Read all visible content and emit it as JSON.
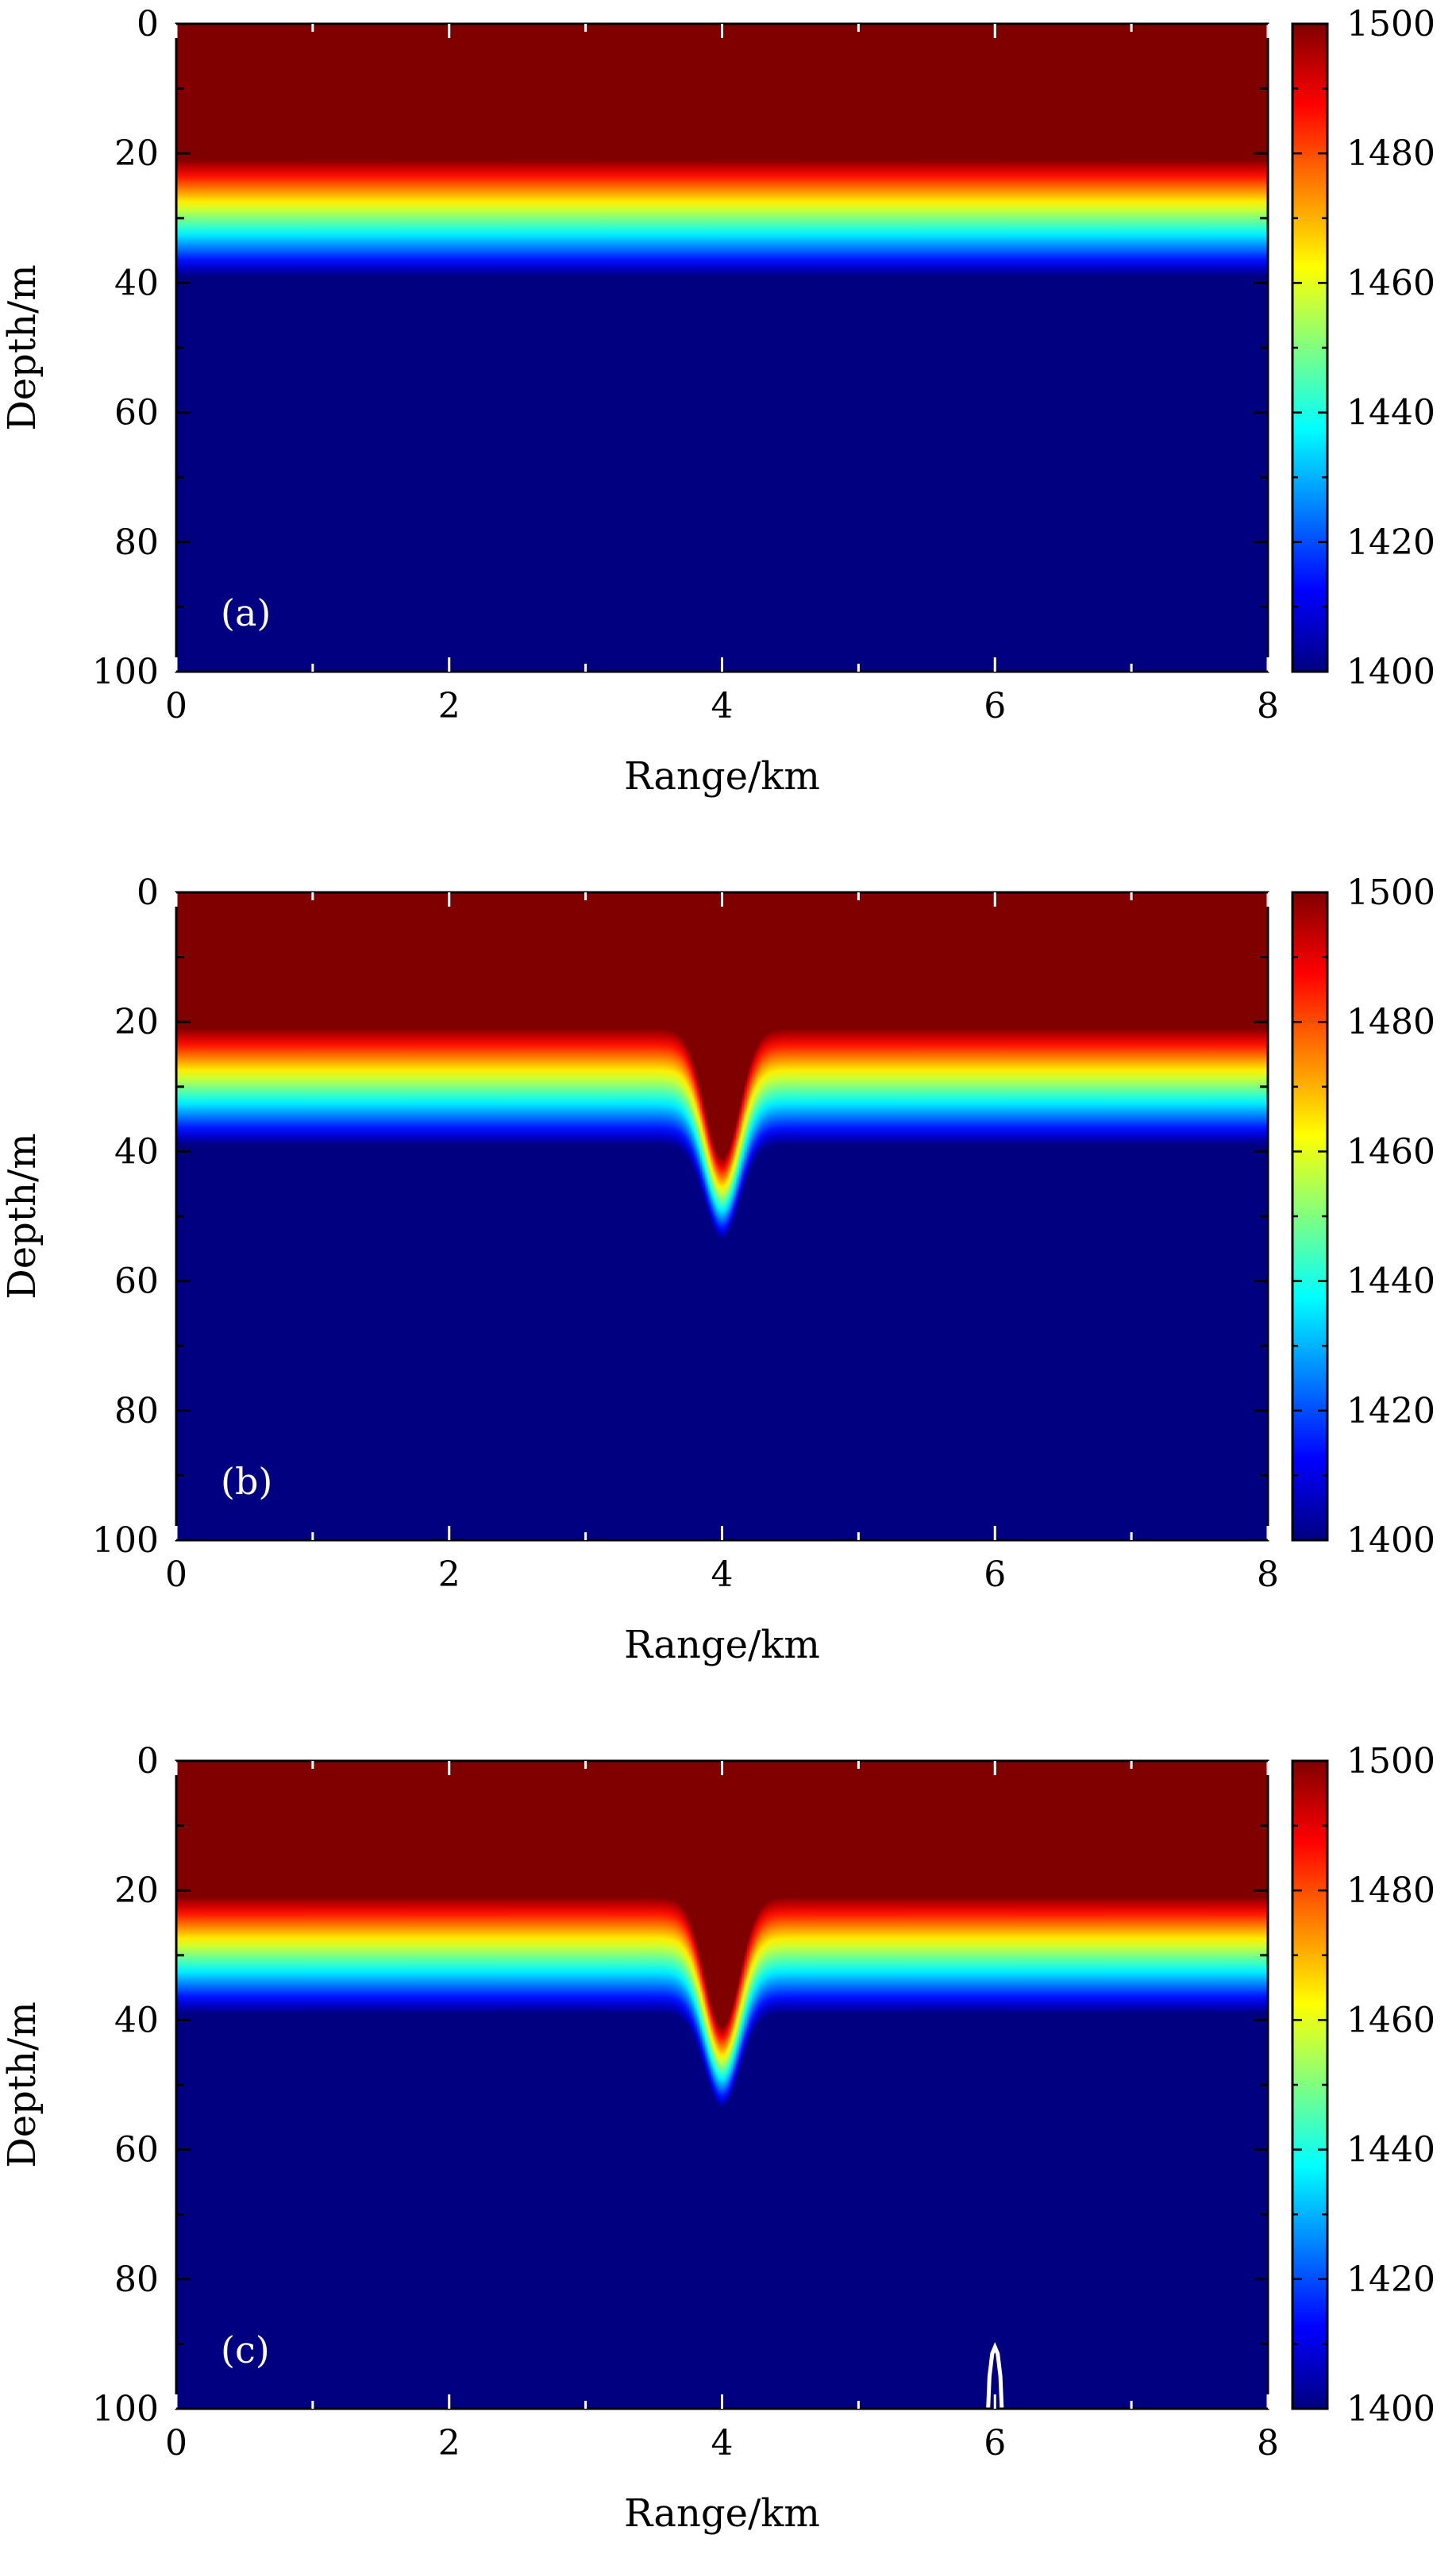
{
  "chart_data": [
    {
      "type": "heatmap",
      "panel_label": "(a)",
      "xlabel": "Range/km",
      "ylabel": "Depth/m",
      "xlim": [
        0,
        8
      ],
      "ylim": [
        100,
        0
      ],
      "x_ticks": [
        "0",
        "2",
        "4",
        "6",
        "8"
      ],
      "y_ticks": [
        "0",
        "20",
        "40",
        "60",
        "80",
        "100"
      ],
      "colorbar": {
        "range": [
          1400,
          1500
        ],
        "ticks": [
          "1400",
          "1420",
          "1440",
          "1460",
          "1480",
          "1500"
        ],
        "colormap": "jet"
      },
      "thermocline": {
        "top_depth_m": 21,
        "bottom_depth_m": 39,
        "surface_speed": 1500,
        "bottom_speed": 1400
      },
      "internal_wave": null,
      "overlay_curve": null
    },
    {
      "type": "heatmap",
      "panel_label": "(b)",
      "xlabel": "Range/km",
      "ylabel": "Depth/m",
      "xlim": [
        0,
        8
      ],
      "ylim": [
        100,
        0
      ],
      "x_ticks": [
        "0",
        "2",
        "4",
        "6",
        "8"
      ],
      "y_ticks": [
        "0",
        "20",
        "40",
        "60",
        "80",
        "100"
      ],
      "colorbar": {
        "range": [
          1400,
          1500
        ],
        "ticks": [
          "1400",
          "1420",
          "1440",
          "1460",
          "1480",
          "1500"
        ],
        "colormap": "jet"
      },
      "thermocline": {
        "top_depth_m": 21,
        "bottom_depth_m": 39,
        "surface_speed": 1500,
        "bottom_speed": 1400
      },
      "internal_wave": {
        "center_km": 4.0,
        "amplitude_m": 20,
        "width_km": 0.18
      },
      "overlay_curve": null
    },
    {
      "type": "heatmap",
      "panel_label": "(c)",
      "xlabel": "Range/km",
      "ylabel": "Depth/m",
      "xlim": [
        0,
        8
      ],
      "ylim": [
        100,
        0
      ],
      "x_ticks": [
        "0",
        "2",
        "4",
        "6",
        "8"
      ],
      "y_ticks": [
        "0",
        "20",
        "40",
        "60",
        "80",
        "100"
      ],
      "colorbar": {
        "range": [
          1400,
          1500
        ],
        "ticks": [
          "1400",
          "1420",
          "1440",
          "1460",
          "1480",
          "1500"
        ],
        "colormap": "jet"
      },
      "thermocline": {
        "top_depth_m": 21,
        "bottom_depth_m": 39,
        "surface_speed": 1500,
        "bottom_speed": 1400
      },
      "internal_wave": {
        "center_km": 4.0,
        "amplitude_m": 20,
        "width_km": 0.18
      },
      "overlay_curve": {
        "color": "#ffffff",
        "points_km_m": [
          [
            5.95,
            100
          ],
          [
            5.96,
            95
          ],
          [
            5.98,
            91.5
          ],
          [
            6.0,
            90.5
          ],
          [
            6.02,
            91.5
          ],
          [
            6.04,
            95
          ],
          [
            6.05,
            100
          ]
        ]
      }
    }
  ]
}
